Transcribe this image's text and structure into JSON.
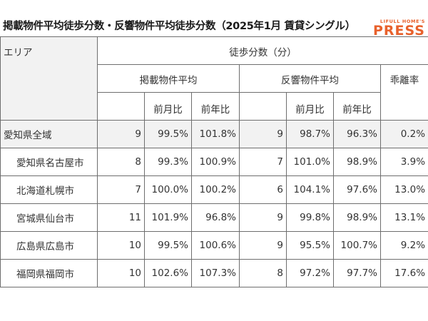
{
  "title": "掲載物件平均徒歩分数・反響物件平均徒歩分数（2025年1月 賃貸シングル）",
  "logo": {
    "top": "LIFULL HOME'S",
    "main": "PRESS"
  },
  "table": {
    "area_header": "エリア",
    "walk_header": "徒歩分数（分）",
    "listed_header": "掲載物件平均",
    "response_header": "反響物件平均",
    "deviation_header": "乖離率",
    "mom_label": "前月比",
    "yoy_label": "前年比",
    "rows": [
      {
        "area": "愛知県全域",
        "listed": "9",
        "listed_mom": "99.5%",
        "listed_yoy": "101.8%",
        "resp": "9",
        "resp_mom": "98.7%",
        "resp_yoy": "96.3%",
        "dev": "0.2%"
      },
      {
        "area": "愛知県名古屋市",
        "listed": "8",
        "listed_mom": "99.3%",
        "listed_yoy": "100.9%",
        "resp": "7",
        "resp_mom": "101.0%",
        "resp_yoy": "98.9%",
        "dev": "3.9%"
      },
      {
        "area": "北海道札幌市",
        "listed": "7",
        "listed_mom": "100.0%",
        "listed_yoy": "100.2%",
        "resp": "6",
        "resp_mom": "104.1%",
        "resp_yoy": "97.6%",
        "dev": "13.0%"
      },
      {
        "area": "宮城県仙台市",
        "listed": "11",
        "listed_mom": "101.9%",
        "listed_yoy": "96.8%",
        "resp": "9",
        "resp_mom": "99.8%",
        "resp_yoy": "98.9%",
        "dev": "13.1%"
      },
      {
        "area": "広島県広島市",
        "listed": "10",
        "listed_mom": "99.5%",
        "listed_yoy": "100.6%",
        "resp": "9",
        "resp_mom": "95.5%",
        "resp_yoy": "100.7%",
        "dev": "9.2%"
      },
      {
        "area": "福岡県福岡市",
        "listed": "10",
        "listed_mom": "102.6%",
        "listed_yoy": "107.3%",
        "resp": "8",
        "resp_mom": "97.2%",
        "resp_yoy": "97.7%",
        "dev": "17.6%"
      }
    ]
  }
}
